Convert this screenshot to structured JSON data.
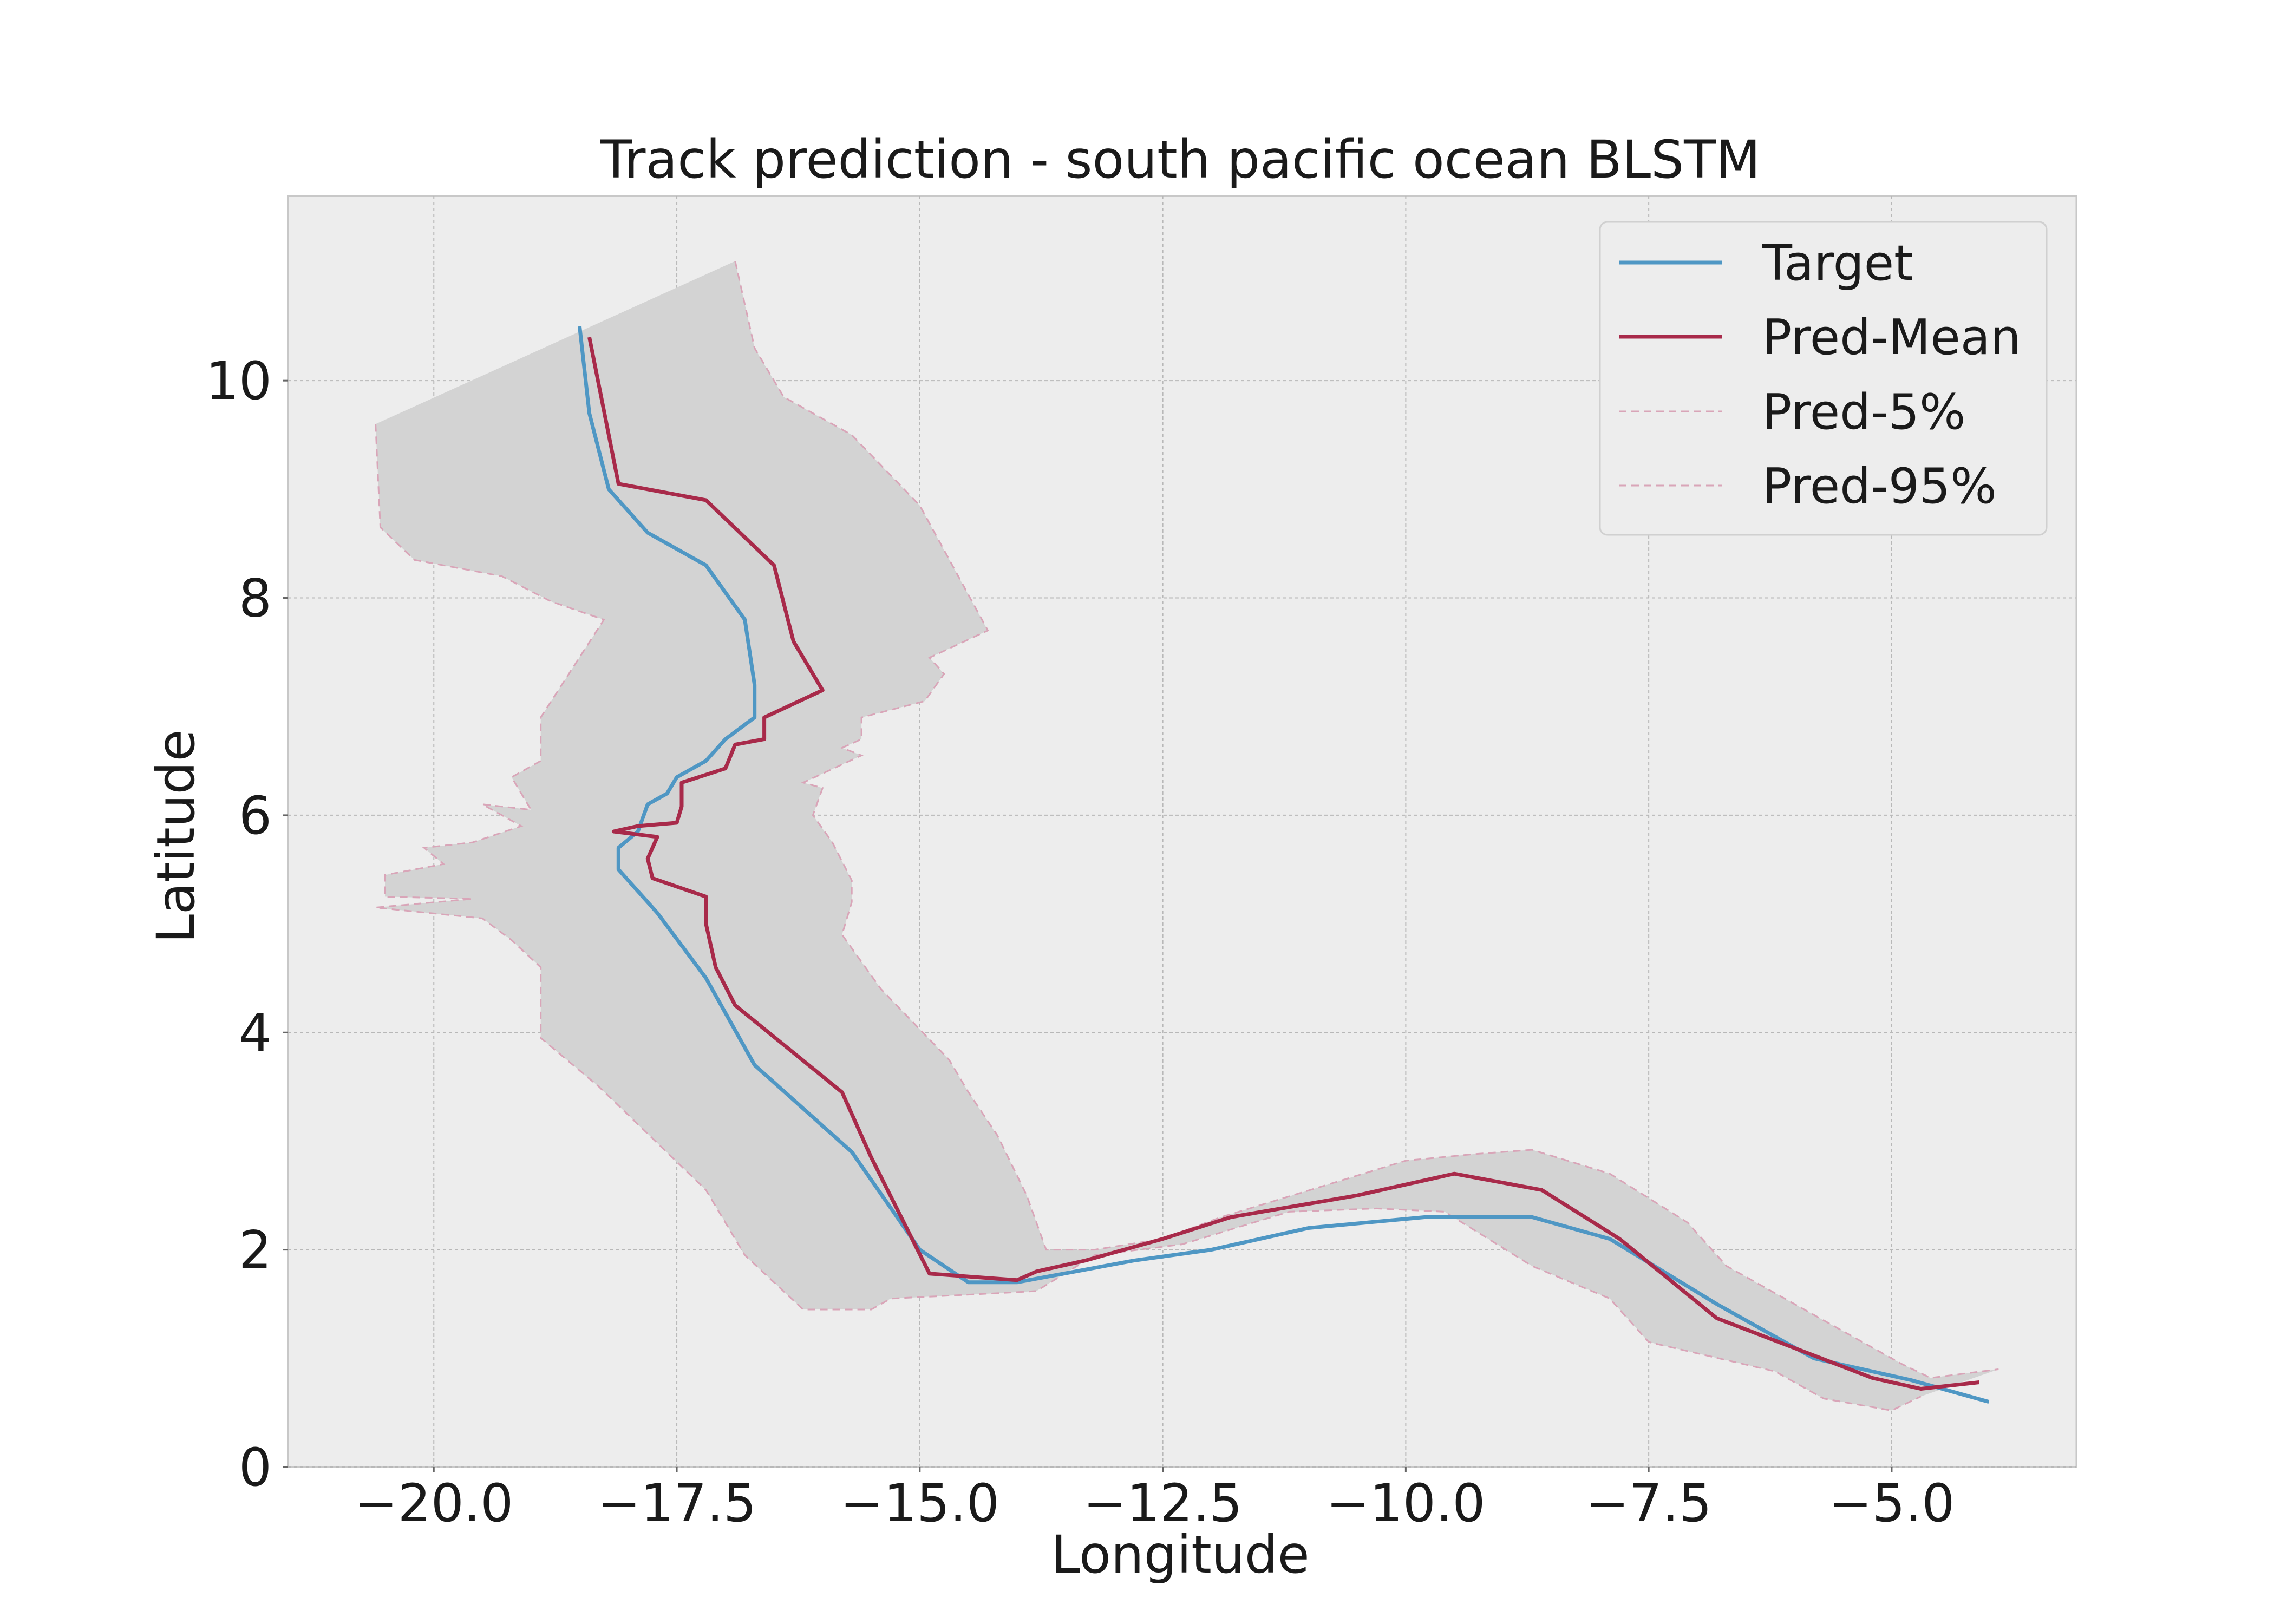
{
  "chart_data": {
    "type": "line",
    "title": "Track prediction - south pacific ocean BLSTM",
    "xlabel": "Longitude",
    "ylabel": "Latitude",
    "xlim": [
      -21.5,
      -3.1
    ],
    "ylim": [
      0,
      11.7
    ],
    "xticks": [
      -20.0,
      -17.5,
      -15.0,
      -12.5,
      -10.0,
      -7.5,
      -5.0
    ],
    "xtick_labels": [
      "−20.0",
      "−17.5",
      "−15.0",
      "−12.5",
      "−10.0",
      "−7.5",
      "−5.0"
    ],
    "yticks": [
      0,
      2,
      4,
      6,
      8,
      10
    ],
    "ytick_labels": [
      "0",
      "2",
      "4",
      "6",
      "8",
      "10"
    ],
    "grid": true,
    "legend_position": "top-right",
    "colors": {
      "target": "#4f97c4",
      "pred_mean": "#a82a4a",
      "band_edge": "#d9a5b8",
      "band_fill": "#d3d3d3",
      "axes_bg": "#ededed",
      "grid": "#b8b8b8",
      "frame": "#c8c8c8"
    },
    "series": [
      {
        "name": "Target",
        "style": "solid",
        "points": [
          [
            -18.5,
            10.5
          ],
          [
            -18.4,
            9.7
          ],
          [
            -18.2,
            9.0
          ],
          [
            -17.8,
            8.6
          ],
          [
            -17.2,
            8.3
          ],
          [
            -16.8,
            7.8
          ],
          [
            -16.7,
            7.2
          ],
          [
            -16.7,
            6.9
          ],
          [
            -17.0,
            6.7
          ],
          [
            -17.2,
            6.5
          ],
          [
            -17.5,
            6.35
          ],
          [
            -17.6,
            6.2
          ],
          [
            -17.8,
            6.1
          ],
          [
            -17.9,
            5.85
          ],
          [
            -18.1,
            5.7
          ],
          [
            -18.1,
            5.5
          ],
          [
            -17.7,
            5.1
          ],
          [
            -17.2,
            4.5
          ],
          [
            -16.7,
            3.7
          ],
          [
            -15.7,
            2.9
          ],
          [
            -15.0,
            2.0
          ],
          [
            -14.5,
            1.7
          ],
          [
            -14.0,
            1.7
          ],
          [
            -13.4,
            1.8
          ],
          [
            -12.8,
            1.9
          ],
          [
            -12.0,
            2.0
          ],
          [
            -11.0,
            2.2
          ],
          [
            -9.8,
            2.3
          ],
          [
            -8.7,
            2.3
          ],
          [
            -7.9,
            2.1
          ],
          [
            -6.8,
            1.5
          ],
          [
            -5.8,
            1.0
          ],
          [
            -4.8,
            0.8
          ],
          [
            -4.0,
            0.6
          ]
        ]
      },
      {
        "name": "Pred-Mean",
        "style": "solid",
        "points": [
          [
            -18.4,
            10.4
          ],
          [
            -18.1,
            9.05
          ],
          [
            -17.2,
            8.9
          ],
          [
            -16.5,
            8.3
          ],
          [
            -16.3,
            7.6
          ],
          [
            -16.0,
            7.15
          ],
          [
            -16.6,
            6.9
          ],
          [
            -16.6,
            6.7
          ],
          [
            -16.9,
            6.65
          ],
          [
            -17.0,
            6.43
          ],
          [
            -17.45,
            6.3
          ],
          [
            -17.45,
            6.08
          ],
          [
            -17.5,
            5.93
          ],
          [
            -17.9,
            5.9
          ],
          [
            -18.15,
            5.85
          ],
          [
            -17.7,
            5.8
          ],
          [
            -17.8,
            5.6
          ],
          [
            -17.75,
            5.42
          ],
          [
            -17.2,
            5.25
          ],
          [
            -17.2,
            5.0
          ],
          [
            -17.1,
            4.6
          ],
          [
            -16.9,
            4.25
          ],
          [
            -15.8,
            3.45
          ],
          [
            -15.5,
            2.85
          ],
          [
            -14.9,
            1.78
          ],
          [
            -14.0,
            1.72
          ],
          [
            -13.8,
            1.8
          ],
          [
            -13.3,
            1.9
          ],
          [
            -12.5,
            2.1
          ],
          [
            -11.8,
            2.3
          ],
          [
            -10.5,
            2.5
          ],
          [
            -9.5,
            2.7
          ],
          [
            -8.6,
            2.55
          ],
          [
            -7.8,
            2.1
          ],
          [
            -6.8,
            1.37
          ],
          [
            -5.2,
            0.82
          ],
          [
            -4.7,
            0.72
          ],
          [
            -4.1,
            0.78
          ]
        ]
      },
      {
        "name": "Pred-5%",
        "style": "dashed",
        "points": [
          [
            -20.6,
            9.6
          ],
          [
            -20.55,
            8.65
          ],
          [
            -20.2,
            8.35
          ],
          [
            -19.3,
            8.2
          ],
          [
            -18.8,
            7.97
          ],
          [
            -18.25,
            7.8
          ],
          [
            -18.9,
            6.9
          ],
          [
            -18.9,
            6.5
          ],
          [
            -19.2,
            6.35
          ],
          [
            -19.0,
            6.05
          ],
          [
            -19.5,
            6.1
          ],
          [
            -19.1,
            5.9
          ],
          [
            -19.6,
            5.75
          ],
          [
            -20.1,
            5.7
          ],
          [
            -19.9,
            5.55
          ],
          [
            -20.5,
            5.45
          ],
          [
            -20.5,
            5.25
          ],
          [
            -19.6,
            5.23
          ],
          [
            -20.6,
            5.15
          ],
          [
            -19.5,
            5.05
          ],
          [
            -19.2,
            4.85
          ],
          [
            -18.9,
            4.6
          ],
          [
            -18.9,
            3.95
          ],
          [
            -18.3,
            3.5
          ],
          [
            -17.2,
            2.55
          ],
          [
            -16.8,
            1.95
          ],
          [
            -16.2,
            1.45
          ],
          [
            -15.5,
            1.45
          ],
          [
            -15.3,
            1.55
          ],
          [
            -14.2,
            1.6
          ],
          [
            -13.8,
            1.62
          ],
          [
            -13.2,
            1.95
          ],
          [
            -12.3,
            2.05
          ],
          [
            -11.2,
            2.35
          ],
          [
            -10.3,
            2.38
          ],
          [
            -9.6,
            2.35
          ],
          [
            -8.7,
            1.85
          ],
          [
            -7.9,
            1.55
          ],
          [
            -7.5,
            1.15
          ],
          [
            -6.2,
            0.88
          ],
          [
            -5.7,
            0.63
          ],
          [
            -5.0,
            0.52
          ],
          [
            -4.7,
            0.65
          ]
        ]
      },
      {
        "name": "Pred-95%",
        "style": "dashed",
        "points": [
          [
            -16.9,
            11.1
          ],
          [
            -16.7,
            10.3
          ],
          [
            -16.4,
            9.85
          ],
          [
            -15.7,
            9.5
          ],
          [
            -15.0,
            8.85
          ],
          [
            -14.3,
            7.7
          ],
          [
            -14.9,
            7.45
          ],
          [
            -14.75,
            7.3
          ],
          [
            -14.95,
            7.05
          ],
          [
            -15.6,
            6.9
          ],
          [
            -15.6,
            6.7
          ],
          [
            -15.8,
            6.62
          ],
          [
            -15.6,
            6.55
          ],
          [
            -16.2,
            6.3
          ],
          [
            -16.0,
            6.25
          ],
          [
            -16.1,
            6.0
          ],
          [
            -15.9,
            5.75
          ],
          [
            -15.7,
            5.4
          ],
          [
            -15.7,
            5.2
          ],
          [
            -15.8,
            4.9
          ],
          [
            -15.4,
            4.4
          ],
          [
            -14.7,
            3.75
          ],
          [
            -14.5,
            3.45
          ],
          [
            -14.2,
            3.05
          ],
          [
            -13.9,
            2.5
          ],
          [
            -13.7,
            2.0
          ],
          [
            -13.2,
            2.0
          ],
          [
            -12.5,
            2.1
          ],
          [
            -11.9,
            2.3
          ],
          [
            -10.8,
            2.6
          ],
          [
            -10.0,
            2.82
          ],
          [
            -9.3,
            2.88
          ],
          [
            -8.7,
            2.92
          ],
          [
            -7.9,
            2.7
          ],
          [
            -7.1,
            2.25
          ],
          [
            -6.7,
            1.85
          ],
          [
            -5.7,
            1.35
          ],
          [
            -4.9,
            0.95
          ],
          [
            -4.6,
            0.82
          ],
          [
            -3.9,
            0.9
          ]
        ]
      }
    ]
  }
}
